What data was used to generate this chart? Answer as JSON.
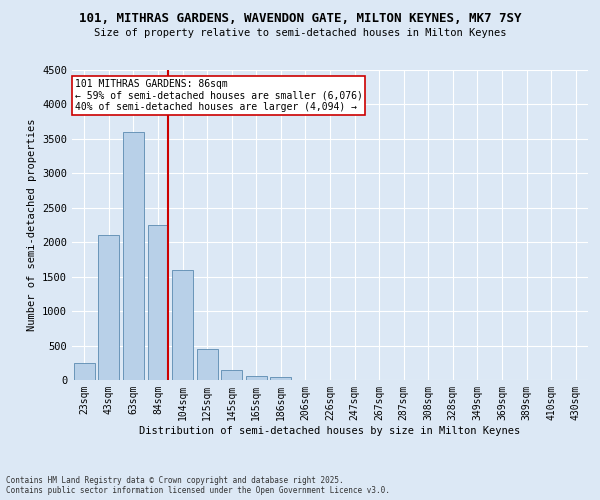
{
  "title_line1": "101, MITHRAS GARDENS, WAVENDON GATE, MILTON KEYNES, MK7 7SY",
  "title_line2": "Size of property relative to semi-detached houses in Milton Keynes",
  "xlabel": "Distribution of semi-detached houses by size in Milton Keynes",
  "ylabel": "Number of semi-detached properties",
  "categories": [
    "23sqm",
    "43sqm",
    "63sqm",
    "84sqm",
    "104sqm",
    "125sqm",
    "145sqm",
    "165sqm",
    "186sqm",
    "206sqm",
    "226sqm",
    "247sqm",
    "267sqm",
    "287sqm",
    "308sqm",
    "328sqm",
    "349sqm",
    "369sqm",
    "389sqm",
    "410sqm",
    "430sqm"
  ],
  "bar_values": [
    250,
    2100,
    3600,
    2250,
    1600,
    450,
    150,
    60,
    40,
    0,
    0,
    0,
    0,
    0,
    0,
    0,
    0,
    0,
    0,
    0,
    0
  ],
  "bar_color": "#b8d0e8",
  "bar_edge_color": "#5a8ab0",
  "subject_label": "101 MITHRAS GARDENS: 86sqm",
  "annotation_line2": "← 59% of semi-detached houses are smaller (6,076)",
  "annotation_line3": "40% of semi-detached houses are larger (4,094) →",
  "vline_color": "#cc0000",
  "vline_x": 3.42,
  "ylim": [
    0,
    4500
  ],
  "yticks": [
    0,
    500,
    1000,
    1500,
    2000,
    2500,
    3000,
    3500,
    4000,
    4500
  ],
  "background_color": "#dce8f5",
  "grid_color": "#ffffff",
  "footer_line1": "Contains HM Land Registry data © Crown copyright and database right 2025.",
  "footer_line2": "Contains public sector information licensed under the Open Government Licence v3.0."
}
